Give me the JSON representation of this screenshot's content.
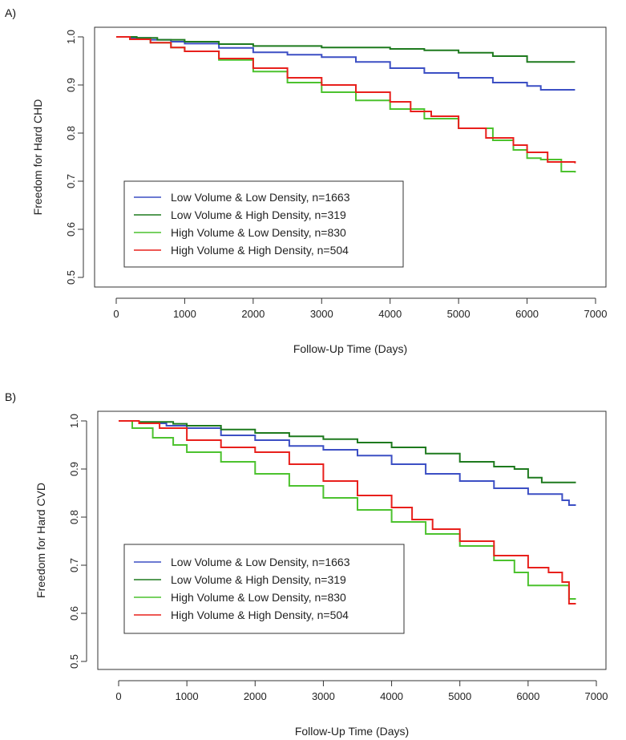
{
  "chart_data": [
    {
      "panel_label": "A)",
      "type": "line",
      "title": "",
      "xlabel": "Follow-Up Time (Days)",
      "ylabel": "Freedom for Hard CHD",
      "xlim": [
        0,
        7000
      ],
      "ylim": [
        0.5,
        1.0
      ],
      "xticks": [
        0,
        1000,
        2000,
        3000,
        4000,
        5000,
        6000,
        7000
      ],
      "yticks": [
        0.5,
        0.6,
        0.7,
        0.8,
        0.9,
        1.0
      ],
      "ytick_labels": [
        "0.5",
        "0.6",
        "0.7",
        "0.8",
        "0.9",
        "1.0"
      ],
      "grid": false,
      "legend_position": "bottom-left",
      "series": [
        {
          "name": "Low Volume & Low Density, n=1663",
          "color": "#3c4fc4",
          "x": [
            0,
            200,
            500,
            800,
            1000,
            1500,
            2000,
            2500,
            3000,
            3500,
            4000,
            4500,
            5000,
            5500,
            6000,
            6200,
            6700
          ],
          "y": [
            1.0,
            0.998,
            0.994,
            0.99,
            0.986,
            0.977,
            0.968,
            0.963,
            0.958,
            0.948,
            0.935,
            0.925,
            0.915,
            0.905,
            0.898,
            0.89,
            0.89
          ]
        },
        {
          "name": "Low Volume & High Density, n=319",
          "color": "#1e7a1e",
          "x": [
            0,
            300,
            600,
            1000,
            1500,
            2000,
            3000,
            4000,
            4500,
            5000,
            5500,
            6000,
            6700
          ],
          "y": [
            1.0,
            0.998,
            0.994,
            0.99,
            0.985,
            0.981,
            0.978,
            0.975,
            0.972,
            0.967,
            0.96,
            0.948,
            0.948
          ]
        },
        {
          "name": "High Volume & Low Density, n=830",
          "color": "#4cc22e",
          "x": [
            0,
            200,
            500,
            800,
            1000,
            1500,
            2000,
            2500,
            3000,
            3500,
            4000,
            4500,
            5000,
            5500,
            5800,
            6000,
            6200,
            6500,
            6700
          ],
          "y": [
            1.0,
            0.995,
            0.988,
            0.978,
            0.97,
            0.952,
            0.928,
            0.905,
            0.885,
            0.868,
            0.85,
            0.83,
            0.81,
            0.785,
            0.765,
            0.748,
            0.745,
            0.72,
            0.718
          ]
        },
        {
          "name": "High Volume & High Density, n=504",
          "color": "#e8201c",
          "x": [
            0,
            200,
            500,
            800,
            1000,
            1500,
            2000,
            2500,
            3000,
            3500,
            4000,
            4300,
            4600,
            5000,
            5400,
            5800,
            6000,
            6300,
            6700
          ],
          "y": [
            1.0,
            0.995,
            0.988,
            0.978,
            0.97,
            0.955,
            0.935,
            0.915,
            0.9,
            0.885,
            0.865,
            0.845,
            0.835,
            0.81,
            0.79,
            0.775,
            0.76,
            0.74,
            0.737
          ]
        }
      ]
    },
    {
      "panel_label": "B)",
      "type": "line",
      "title": "",
      "xlabel": "Follow-Up Time (Days)",
      "ylabel": "Freedom for Hard CVD",
      "xlim": [
        0,
        7000
      ],
      "ylim": [
        0.5,
        1.0
      ],
      "xticks": [
        0,
        1000,
        2000,
        3000,
        4000,
        5000,
        6000,
        7000
      ],
      "yticks": [
        0.5,
        0.6,
        0.7,
        0.8,
        0.9,
        1.0
      ],
      "ytick_labels": [
        "0.5",
        "0.6",
        "0.7",
        "0.8",
        "0.9",
        "1.0"
      ],
      "grid": false,
      "legend_position": "bottom-left",
      "series": [
        {
          "name": "Low Volume & Low Density, n=1663",
          "color": "#3c4fc4",
          "x": [
            0,
            300,
            700,
            1000,
            1500,
            2000,
            2500,
            3000,
            3500,
            4000,
            4500,
            5000,
            5500,
            6000,
            6500,
            6600,
            6700
          ],
          "y": [
            1.0,
            0.995,
            0.99,
            0.985,
            0.97,
            0.96,
            0.948,
            0.94,
            0.928,
            0.91,
            0.89,
            0.875,
            0.86,
            0.848,
            0.835,
            0.825,
            0.825
          ]
        },
        {
          "name": "Low Volume & High Density, n=319",
          "color": "#1e7a1e",
          "x": [
            0,
            300,
            800,
            1000,
            1500,
            2000,
            2500,
            3000,
            3500,
            4000,
            4500,
            5000,
            5500,
            5800,
            6000,
            6200,
            6700
          ],
          "y": [
            1.0,
            0.998,
            0.994,
            0.99,
            0.982,
            0.975,
            0.968,
            0.962,
            0.955,
            0.945,
            0.932,
            0.915,
            0.905,
            0.9,
            0.882,
            0.872,
            0.872
          ]
        },
        {
          "name": "High Volume & Low Density, n=830",
          "color": "#4cc22e",
          "x": [
            0,
            200,
            500,
            800,
            1000,
            1500,
            2000,
            2500,
            3000,
            3500,
            4000,
            4500,
            5000,
            5500,
            5800,
            6000,
            6500,
            6600,
            6700
          ],
          "y": [
            1.0,
            0.985,
            0.965,
            0.95,
            0.935,
            0.915,
            0.89,
            0.865,
            0.84,
            0.815,
            0.79,
            0.765,
            0.74,
            0.71,
            0.685,
            0.658,
            0.658,
            0.63,
            0.63
          ]
        },
        {
          "name": "High Volume & High Density, n=504",
          "color": "#e8201c",
          "x": [
            0,
            300,
            600,
            1000,
            1500,
            2000,
            2500,
            3000,
            3500,
            4000,
            4300,
            4600,
            5000,
            5500,
            6000,
            6300,
            6500,
            6600,
            6700
          ],
          "y": [
            1.0,
            0.995,
            0.985,
            0.96,
            0.945,
            0.935,
            0.91,
            0.875,
            0.845,
            0.82,
            0.795,
            0.775,
            0.75,
            0.72,
            0.695,
            0.685,
            0.665,
            0.62,
            0.62
          ]
        }
      ]
    }
  ]
}
